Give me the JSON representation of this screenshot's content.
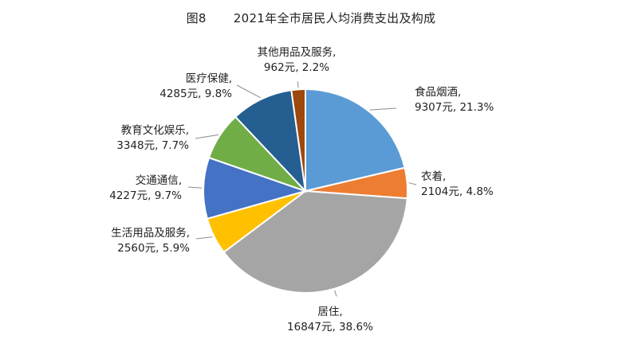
{
  "figure": {
    "number": "图8",
    "title": "2021年全市居民人均消费支出及构成"
  },
  "chart_data": {
    "type": "pie",
    "title": "2021年全市居民人均消费支出及构成",
    "unit": "元",
    "slices": [
      {
        "name": "食品烟酒",
        "value": 9307,
        "percent": 21.3,
        "value_label": "9307元, 21.3%",
        "color": "#5b9bd5"
      },
      {
        "name": "衣着",
        "value": 2104,
        "percent": 4.8,
        "value_label": "2104元, 4.8%",
        "color": "#ed7d31"
      },
      {
        "name": "居住",
        "value": 16847,
        "percent": 38.6,
        "value_label": "16847元, 38.6%",
        "color": "#a5a5a5"
      },
      {
        "name": "生活用品及服务",
        "value": 2560,
        "percent": 5.9,
        "value_label": "2560元, 5.9%",
        "color": "#ffc000"
      },
      {
        "name": "交通通信",
        "value": 4227,
        "percent": 9.7,
        "value_label": "4227元, 9.7%",
        "color": "#4472c4"
      },
      {
        "name": "教育文化娱乐",
        "value": 3348,
        "percent": 7.7,
        "value_label": "3348元, 7.7%",
        "color": "#70ad47"
      },
      {
        "name": "医疗保健",
        "value": 4285,
        "percent": 9.8,
        "value_label": "4285元, 9.8%",
        "color": "#255e91"
      },
      {
        "name": "其他用品及服务",
        "value": 962,
        "percent": 2.2,
        "value_label": "962元, 2.2%",
        "color": "#9e480e"
      }
    ]
  }
}
